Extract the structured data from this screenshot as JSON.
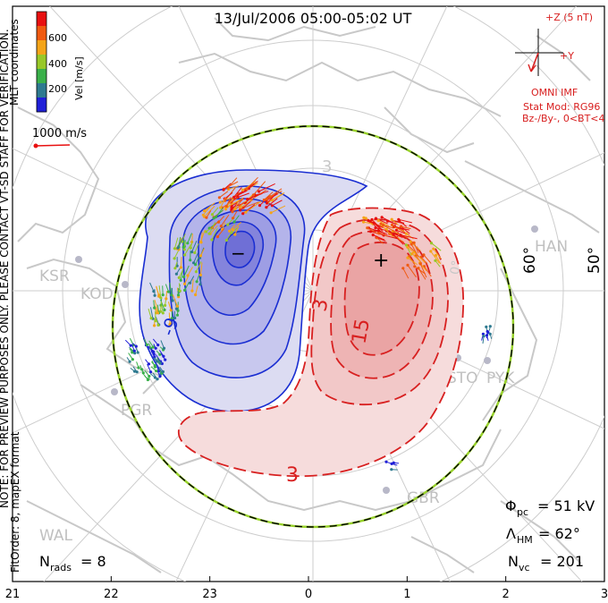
{
  "title": "13/Jul/2006 05:00-05:02 UT",
  "colorbar": {
    "label": "Vel [m/s]",
    "ticks": [
      "600",
      "400",
      "200"
    ],
    "colors": [
      "#e81010",
      "#f05a10",
      "#f4a418",
      "#98c828",
      "#3ab04a",
      "#2e7a90",
      "#2020d8"
    ]
  },
  "coords_label": "MLT coordinates",
  "vector_scale_label": "1000 m/s",
  "note": "NOTE: FOR PREVIEW PURPOSES ONLY. PLEASE CONTACT VT-SD STAFF FOR VERIFICATION.",
  "fit_info": "FitOrder: 8,  mapEX format",
  "imf": {
    "axis_z": "+Z (5 nT)",
    "axis_y": "+Y",
    "source": "OMNI IMF",
    "model": "Stat Mod: RG96",
    "conditions": "Bz-/By-, 0<BT<4"
  },
  "stats": {
    "n_rads_symbol": "N",
    "n_rads_sub": "rads",
    "n_rads_value": "= 8",
    "phi_symbol": "Φ",
    "phi_sub": "pc",
    "phi_value": "= 51 kV",
    "lambda_symbol": "Λ",
    "lambda_sub": "HM",
    "lambda_value": "= 62°",
    "nvc_symbol": "N",
    "nvc_sub": "vc",
    "nvc_value": "= 201"
  },
  "mlt_ticks": [
    "21",
    "22",
    "23",
    "0",
    "1",
    "2",
    "3"
  ],
  "lat_labels": [
    "60°",
    "50°"
  ],
  "contour_labels": [
    "3",
    "15",
    "3",
    "-9",
    "3"
  ],
  "stations": [
    "KSR",
    "KOD",
    "PGR",
    "HAN",
    "STO",
    "PYK",
    "GBR",
    "WAL"
  ],
  "extrema_marks": [
    "−",
    "+"
  ]
}
